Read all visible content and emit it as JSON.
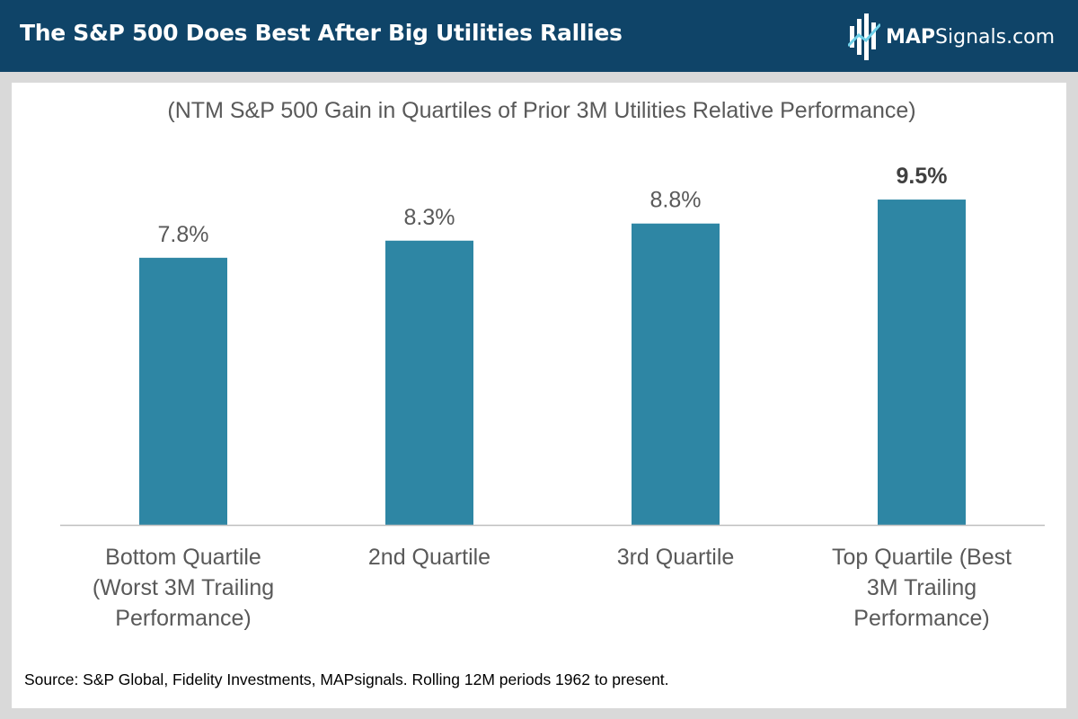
{
  "header": {
    "title": "The S&P 500 Does Best After Big Utilities Rallies",
    "logo_text_bold": "MAP",
    "logo_text_regular": "Signals.com"
  },
  "colors": {
    "header_bg": "#0f4468",
    "bar": "#2e86a4",
    "axis": "#bfbfbf",
    "text": "#595959"
  },
  "chart_data": {
    "type": "bar",
    "title": "(NTM S&P 500 Gain in Quartiles of Prior 3M Utilities Relative Performance)",
    "categories": [
      [
        "Bottom Quartile",
        "(Worst 3M Trailing",
        "Performance)"
      ],
      [
        "2nd Quartile"
      ],
      [
        "3rd Quartile"
      ],
      [
        "Top Quartile (Best",
        "3M Trailing",
        "Performance)"
      ]
    ],
    "values": [
      7.8,
      8.3,
      8.8,
      9.5
    ],
    "labels": [
      "7.8%",
      "8.3%",
      "8.8%",
      "9.5%"
    ],
    "highlight_index": 3,
    "ylim": [
      0,
      10
    ],
    "xlabel": "",
    "ylabel": "",
    "grid": false,
    "legend": "none"
  },
  "footer": {
    "source": "Source: S&P Global, Fidelity Investments, MAPsignals. Rolling 12M periods 1962 to present."
  }
}
